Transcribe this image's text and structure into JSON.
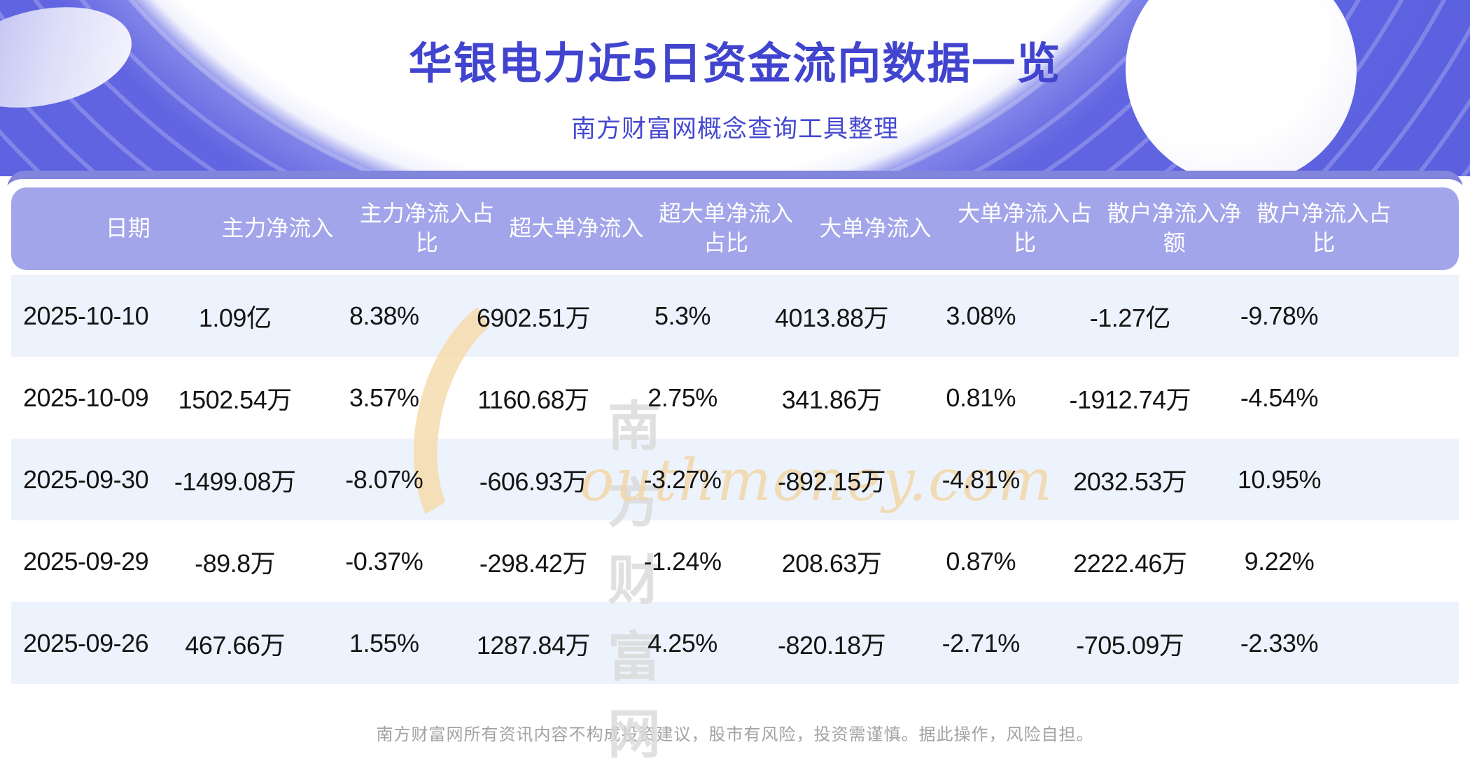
{
  "page": {
    "title": "华银电力近5日资金流向数据一览",
    "subtitle": "南方财富网概念查询工具整理",
    "footer_disclaimer": "南方财富网所有资讯内容不构成投资建议，股市有风险，投资需谨慎。据此操作，风险自担。",
    "watermark": {
      "cn": "南方财富网",
      "en": "outhmoney.com"
    }
  },
  "theme": {
    "accent_title": "#4144ce",
    "header_bg": "#a2a5ea",
    "band_bg": "#8285dc",
    "row_alt_bg": "#edf3fc",
    "ring_purple": "#6165e1",
    "watermark_orange": "#f3d6a4",
    "watermark_gray": "#d9d9d9",
    "footer_gray": "#a2a2a2"
  },
  "chart_data": {
    "type": "table",
    "title": "华银电力近5日资金流向数据一览",
    "subtitle": "南方财富网概念查询工具整理",
    "columns": [
      "日期",
      "主力净流入",
      "主力净流入占比",
      "超大单净流入",
      "超大单净流入占比",
      "大单净流入",
      "大单净流入占比",
      "散户净流入净额",
      "散户净流入占比"
    ],
    "rows": [
      [
        "2025-10-10",
        "1.09亿",
        "8.38%",
        "6902.51万",
        "5.3%",
        "4013.88万",
        "3.08%",
        "-1.27亿",
        "-9.78%"
      ],
      [
        "2025-10-09",
        "1502.54万",
        "3.57%",
        "1160.68万",
        "2.75%",
        "341.86万",
        "0.81%",
        "-1912.74万",
        "-4.54%"
      ],
      [
        "2025-09-30",
        "-1499.08万",
        "-8.07%",
        "-606.93万",
        "-3.27%",
        "-892.15万",
        "-4.81%",
        "2032.53万",
        "10.95%"
      ],
      [
        "2025-09-29",
        "-89.8万",
        "-0.37%",
        "-298.42万",
        "-1.24%",
        "208.63万",
        "0.87%",
        "2222.46万",
        "9.22%"
      ],
      [
        "2025-09-26",
        "467.66万",
        "1.55%",
        "1287.84万",
        "4.25%",
        "-820.18万",
        "-2.71%",
        "-705.09万",
        "-2.33%"
      ]
    ]
  }
}
